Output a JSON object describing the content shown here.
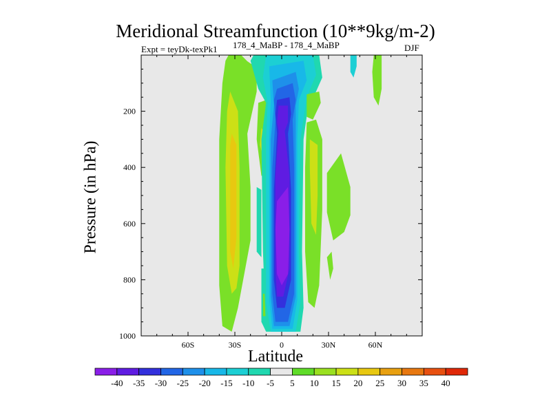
{
  "chart_data": {
    "type": "heatmap",
    "title": "Meridional Streamfunction (10**9kg/m-2)",
    "left_subtitle": "Expt = teyDk-texPk1",
    "center_subtitle": "178_4_MaBP - 178_4_MaBP",
    "right_subtitle": "DJF",
    "xlabel": "Latitude",
    "ylabel": "Pressure (in hPa)",
    "xlim": [
      -90,
      90
    ],
    "ylim": [
      1000,
      0
    ],
    "xticks": [
      {
        "value": -60,
        "label": "60S"
      },
      {
        "value": -30,
        "label": "30S"
      },
      {
        "value": 0,
        "label": "0"
      },
      {
        "value": 30,
        "label": "30N"
      },
      {
        "value": 60,
        "label": "60N"
      }
    ],
    "yticks": [
      {
        "value": 200,
        "label": "200"
      },
      {
        "value": 400,
        "label": "400"
      },
      {
        "value": 600,
        "label": "600"
      },
      {
        "value": 800,
        "label": "800"
      },
      {
        "value": 1000,
        "label": "1000"
      }
    ],
    "colorbar_labels": [
      "-40",
      "-35",
      "-30",
      "-25",
      "-20",
      "-15",
      "-10",
      "-5",
      "5",
      "10",
      "15",
      "20",
      "25",
      "30",
      "35",
      "40"
    ],
    "colorbar_colors": [
      "#8a1ee8",
      "#5f1ce2",
      "#3330dd",
      "#2266e6",
      "#1e90ea",
      "#18b8e8",
      "#1ccfd4",
      "#20d8b0",
      "#e8e8e8",
      "#5fdc28",
      "#9ae020",
      "#cce016",
      "#e8c810",
      "#e8a010",
      "#e87810",
      "#e85010",
      "#e02808"
    ],
    "background": "#e8e8e8",
    "regions": [
      {
        "color": "#7ae028",
        "pts": [
          [
            -34,
            0
          ],
          [
            -26,
            0
          ],
          [
            -22,
            22
          ],
          [
            -16,
            45
          ],
          [
            -16,
            130
          ],
          [
            -22,
            280
          ],
          [
            -20,
            470
          ],
          [
            -20,
            660
          ],
          [
            -28,
            900
          ],
          [
            -32,
            985
          ],
          [
            -38,
            965
          ],
          [
            -40,
            820
          ],
          [
            -40,
            300
          ],
          [
            -38,
            100
          ],
          [
            -36,
            20
          ]
        ]
      },
      {
        "color": "#cce016",
        "pts": [
          [
            -33,
            130
          ],
          [
            -28,
            200
          ],
          [
            -27,
            400
          ],
          [
            -27,
            750
          ],
          [
            -29,
            830
          ],
          [
            -32,
            850
          ],
          [
            -35,
            750
          ],
          [
            -36,
            400
          ],
          [
            -35,
            200
          ]
        ]
      },
      {
        "color": "#e8c810",
        "pts": [
          [
            -32,
            280
          ],
          [
            -29,
            320
          ],
          [
            -29,
            650
          ],
          [
            -31,
            760
          ],
          [
            -33,
            700
          ],
          [
            -33,
            320
          ]
        ]
      },
      {
        "color": "#7ae028",
        "pts": [
          [
            -15,
            170
          ],
          [
            -10,
            160
          ],
          [
            -7,
            300
          ],
          [
            -9,
            430
          ],
          [
            -13,
            430
          ],
          [
            -16,
            300
          ]
        ]
      },
      {
        "color": "#cce016",
        "pts": [
          [
            -13,
            260
          ],
          [
            -10,
            280
          ],
          [
            -10,
            340
          ],
          [
            -12,
            360
          ],
          [
            -14,
            320
          ]
        ]
      },
      {
        "color": "#20d8b0",
        "pts": [
          [
            -16,
            470
          ],
          [
            -13,
            480
          ],
          [
            -13,
            720
          ],
          [
            -16,
            700
          ]
        ]
      },
      {
        "color": "#20d8b0",
        "pts": [
          [
            -13,
            760
          ],
          [
            -9,
            760
          ],
          [
            -8,
            900
          ],
          [
            -10,
            985
          ],
          [
            -13,
            950
          ]
        ]
      },
      {
        "color": "#7ae028",
        "pts": [
          [
            -12,
            850
          ],
          [
            -9,
            850
          ],
          [
            -9,
            930
          ],
          [
            -12,
            930
          ]
        ]
      },
      {
        "color": "#20d8b0",
        "pts": [
          [
            -18,
            0
          ],
          [
            24,
            0
          ],
          [
            26,
            80
          ],
          [
            22,
            130
          ],
          [
            17,
            180
          ],
          [
            14,
            300
          ],
          [
            13,
            700
          ],
          [
            14,
            900
          ],
          [
            12,
            985
          ],
          [
            2,
            985
          ],
          [
            -10,
            985
          ],
          [
            -12,
            700
          ],
          [
            -13,
            300
          ],
          [
            -10,
            170
          ],
          [
            -15,
            120
          ],
          [
            -20,
            20
          ]
        ]
      },
      {
        "color": "#1ccfd4",
        "pts": [
          [
            -10,
            0
          ],
          [
            20,
            0
          ],
          [
            22,
            70
          ],
          [
            16,
            150
          ],
          [
            12,
            300
          ],
          [
            11,
            700
          ],
          [
            12,
            880
          ],
          [
            9,
            985
          ],
          [
            -7,
            985
          ],
          [
            -10,
            880
          ],
          [
            -10,
            300
          ],
          [
            -9,
            170
          ],
          [
            -12,
            80
          ]
        ]
      },
      {
        "color": "#18b8e8",
        "pts": [
          [
            -8,
            40
          ],
          [
            14,
            20
          ],
          [
            16,
            90
          ],
          [
            11,
            160
          ],
          [
            10,
            300
          ],
          [
            10,
            700
          ],
          [
            10,
            870
          ],
          [
            7,
            975
          ],
          [
            -6,
            975
          ],
          [
            -8,
            870
          ],
          [
            -8,
            300
          ],
          [
            -7,
            160
          ]
        ]
      },
      {
        "color": "#1e90ea",
        "pts": [
          [
            -6,
            90
          ],
          [
            9,
            60
          ],
          [
            11,
            120
          ],
          [
            9,
            180
          ],
          [
            9,
            300
          ],
          [
            9,
            700
          ],
          [
            9,
            860
          ],
          [
            5,
            965
          ],
          [
            -5,
            965
          ],
          [
            -7,
            860
          ],
          [
            -7,
            300
          ],
          [
            -5,
            180
          ]
        ]
      },
      {
        "color": "#2266e6",
        "pts": [
          [
            -3,
            120
          ],
          [
            7,
            100
          ],
          [
            9,
            160
          ],
          [
            7,
            230
          ],
          [
            8,
            400
          ],
          [
            8,
            700
          ],
          [
            8,
            850
          ],
          [
            4,
            950
          ],
          [
            -4,
            950
          ],
          [
            -6,
            850
          ],
          [
            -6,
            400
          ],
          [
            -4,
            230
          ],
          [
            -5,
            160
          ]
        ]
      },
      {
        "color": "#3330dd",
        "pts": [
          [
            -3,
            160
          ],
          [
            5,
            150
          ],
          [
            6,
            210
          ],
          [
            4,
            280
          ],
          [
            6,
            480
          ],
          [
            6,
            800
          ],
          [
            2,
            900
          ],
          [
            -3,
            900
          ],
          [
            -5,
            800
          ],
          [
            -5,
            480
          ],
          [
            -3,
            280
          ],
          [
            -4,
            210
          ]
        ]
      },
      {
        "color": "#5f1ce2",
        "pts": [
          [
            -2,
            180
          ],
          [
            4,
            180
          ],
          [
            4,
            240
          ],
          [
            2,
            270
          ],
          [
            5,
            430
          ],
          [
            5,
            760
          ],
          [
            1,
            860
          ],
          [
            -3,
            860
          ],
          [
            -4,
            760
          ],
          [
            -4,
            430
          ],
          [
            -2,
            270
          ],
          [
            -3,
            240
          ]
        ]
      },
      {
        "color": "#8a1ee8",
        "pts": [
          [
            -3,
            520
          ],
          [
            4,
            470
          ],
          [
            5,
            620
          ],
          [
            4,
            780
          ],
          [
            0,
            820
          ],
          [
            -3,
            780
          ],
          [
            -4,
            620
          ]
        ]
      },
      {
        "color": "#7ae028",
        "pts": [
          [
            16,
            240
          ],
          [
            22,
            230
          ],
          [
            26,
            300
          ],
          [
            26,
            550
          ],
          [
            24,
            820
          ],
          [
            21,
            900
          ],
          [
            17,
            880
          ],
          [
            15,
            700
          ],
          [
            15,
            400
          ]
        ]
      },
      {
        "color": "#cce016",
        "pts": [
          [
            18,
            300
          ],
          [
            23,
            320
          ],
          [
            23,
            500
          ],
          [
            22,
            640
          ],
          [
            19,
            600
          ],
          [
            18,
            400
          ]
        ]
      },
      {
        "color": "#7ae028",
        "pts": [
          [
            16,
            140
          ],
          [
            24,
            130
          ],
          [
            25,
            170
          ],
          [
            20,
            230
          ],
          [
            16,
            220
          ]
        ]
      },
      {
        "color": "#7ae028",
        "pts": [
          [
            29,
            420
          ],
          [
            38,
            350
          ],
          [
            44,
            470
          ],
          [
            44,
            570
          ],
          [
            40,
            630
          ],
          [
            33,
            660
          ],
          [
            29,
            560
          ]
        ]
      },
      {
        "color": "#7ae028",
        "pts": [
          [
            29,
            720
          ],
          [
            32,
            700
          ],
          [
            33,
            760
          ],
          [
            31,
            800
          ]
        ]
      },
      {
        "color": "#1ccfd4",
        "pts": [
          [
            44,
            0
          ],
          [
            48,
            0
          ],
          [
            48,
            40
          ],
          [
            46,
            80
          ],
          [
            44,
            60
          ]
        ]
      },
      {
        "color": "#7ae028",
        "pts": [
          [
            59,
            0
          ],
          [
            64,
            0
          ],
          [
            64,
            120
          ],
          [
            62,
            180
          ],
          [
            59,
            150
          ],
          [
            58,
            60
          ]
        ]
      }
    ]
  }
}
